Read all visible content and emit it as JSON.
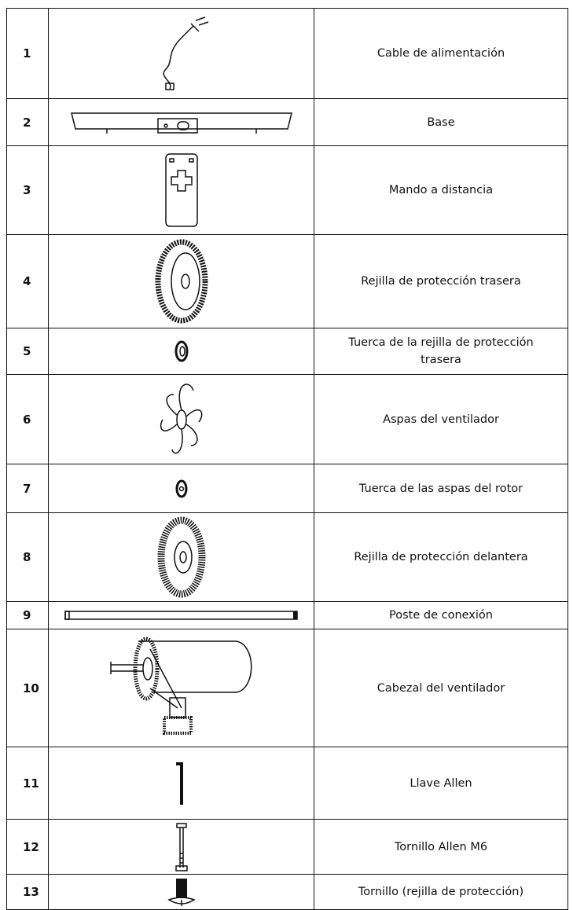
{
  "table": {
    "rows": [
      [
        "1",
        "Cable de alimentación"
      ],
      [
        "2",
        "Base"
      ],
      [
        "3",
        "Mando a distancia"
      ],
      [
        "4",
        "Rejilla de protección trasera"
      ],
      [
        "5",
        "Tuerca de la rejilla de protección trasera"
      ],
      [
        "6",
        "Aspas del ventilador"
      ],
      [
        "7",
        "Tuerca de las aspas del rotor"
      ],
      [
        "8",
        "Rejilla de protección delantera"
      ],
      [
        "9",
        "Poste de conexión"
      ],
      [
        "10",
        "Cabezal del ventilador"
      ],
      [
        "11",
        "Llave Allen"
      ],
      [
        "12",
        "Tornillo Allen M6"
      ],
      [
        "13",
        "Tornillo (rejilla de protección)"
      ]
    ]
  }
}
